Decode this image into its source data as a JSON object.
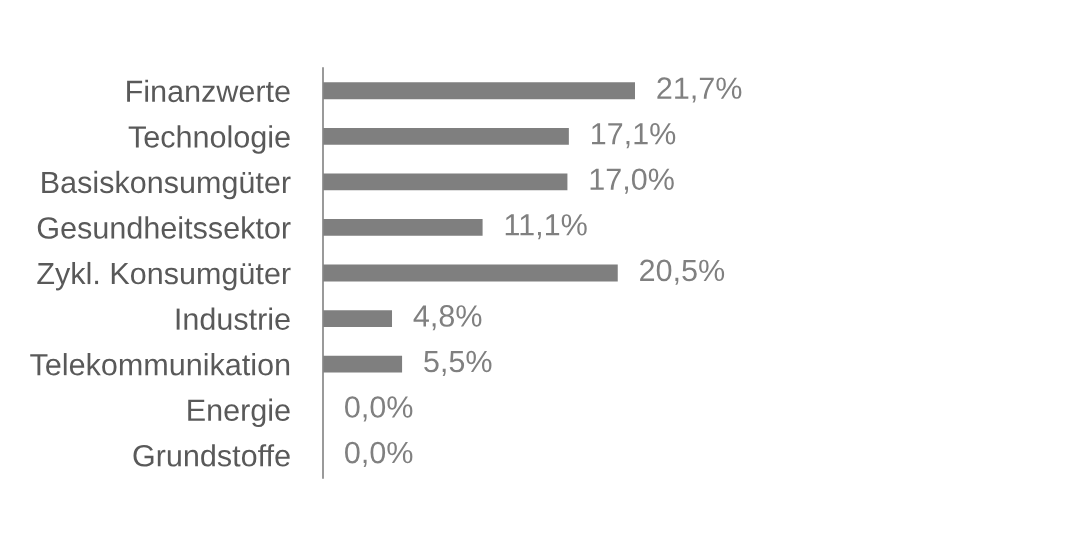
{
  "chart_data": {
    "type": "bar",
    "orientation": "horizontal",
    "categories": [
      "Finanzwerte",
      "Technologie",
      "Basiskonsumgüter",
      "Gesundheitssektor",
      "Zykl. Konsumgüter",
      "Industrie",
      "Telekommunikation",
      "Energie",
      "Grundstoffe"
    ],
    "values": [
      21.7,
      17.1,
      17.0,
      11.1,
      20.5,
      4.8,
      5.5,
      0.0,
      0.0
    ],
    "value_labels": [
      "21,7%",
      "17,1%",
      "17,0%",
      "11,1%",
      "20,5%",
      "4,8%",
      "5,5%",
      "0,0%",
      "0,0%"
    ],
    "color": "#7f7f7f"
  }
}
